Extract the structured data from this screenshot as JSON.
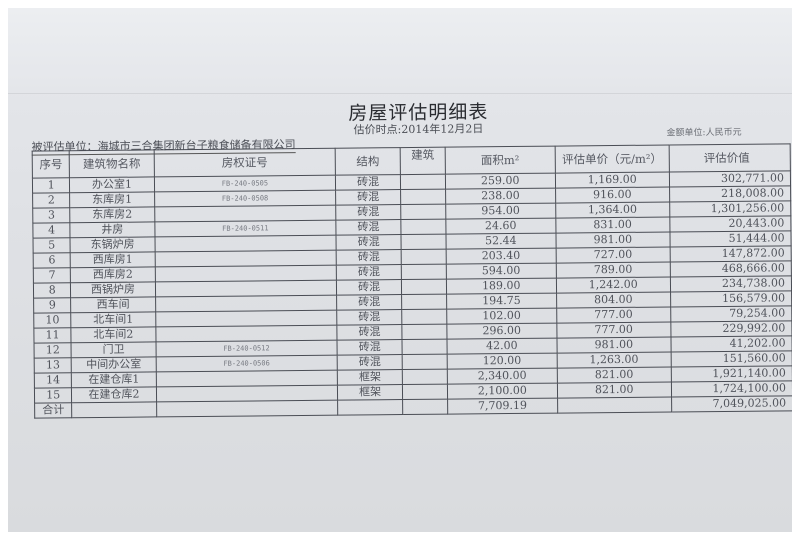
{
  "title": "房屋评估明细表",
  "subtitle": "估价时点:2014年12月2日",
  "entity": "被评估单位：海城市三合集团新台子粮食储备有限公司",
  "currency_unit": "金额单位:人民币元",
  "headers": [
    "序号",
    "建筑物名称",
    "房权证号",
    "结构",
    "建筑",
    "面积m²",
    "评估单价（元/m²）",
    "评估价值"
  ],
  "rows": [
    [
      "1",
      "办公室1",
      "FB-240-0505",
      "砖混",
      "",
      "259.00",
      "1,169.00",
      "302,771.00"
    ],
    [
      "2",
      "东库房1",
      "FB-240-0508",
      "砖混",
      "",
      "238.00",
      "916.00",
      "218,008.00"
    ],
    [
      "3",
      "东库房2",
      "",
      "砖混",
      "",
      "954.00",
      "1,364.00",
      "1,301,256.00"
    ],
    [
      "4",
      "井房",
      "FB-240-0511",
      "砖混",
      "",
      "24.60",
      "831.00",
      "20,443.00"
    ],
    [
      "5",
      "东锅炉房",
      "",
      "砖混",
      "",
      "52.44",
      "981.00",
      "51,444.00"
    ],
    [
      "6",
      "西库房1",
      "",
      "砖混",
      "",
      "203.40",
      "727.00",
      "147,872.00"
    ],
    [
      "7",
      "西库房2",
      "",
      "砖混",
      "",
      "594.00",
      "789.00",
      "468,666.00"
    ],
    [
      "8",
      "西锅炉房",
      "",
      "砖混",
      "",
      "189.00",
      "1,242.00",
      "234,738.00"
    ],
    [
      "9",
      "西车间",
      "",
      "砖混",
      "",
      "194.75",
      "804.00",
      "156,579.00"
    ],
    [
      "10",
      "北车间1",
      "",
      "砖混",
      "",
      "102.00",
      "777.00",
      "79,254.00"
    ],
    [
      "11",
      "北车间2",
      "",
      "砖混",
      "",
      "296.00",
      "777.00",
      "229,992.00"
    ],
    [
      "12",
      "门卫",
      "FB-240-0512",
      "砖混",
      "",
      "42.00",
      "981.00",
      "41,202.00"
    ],
    [
      "13",
      "中间办公室",
      "FB-240-0506",
      "砖混",
      "",
      "120.00",
      "1,263.00",
      "151,560.00"
    ],
    [
      "14",
      "在建仓库1",
      "",
      "框架",
      "",
      "2,340.00",
      "821.00",
      "1,921,140.00"
    ],
    [
      "15",
      "在建仓库2",
      "",
      "框架",
      "",
      "2,100.00",
      "821.00",
      "1,724,100.00"
    ]
  ],
  "total": {
    "label": "合计",
    "area": "7,709.19",
    "value": "7,049,025.00"
  }
}
